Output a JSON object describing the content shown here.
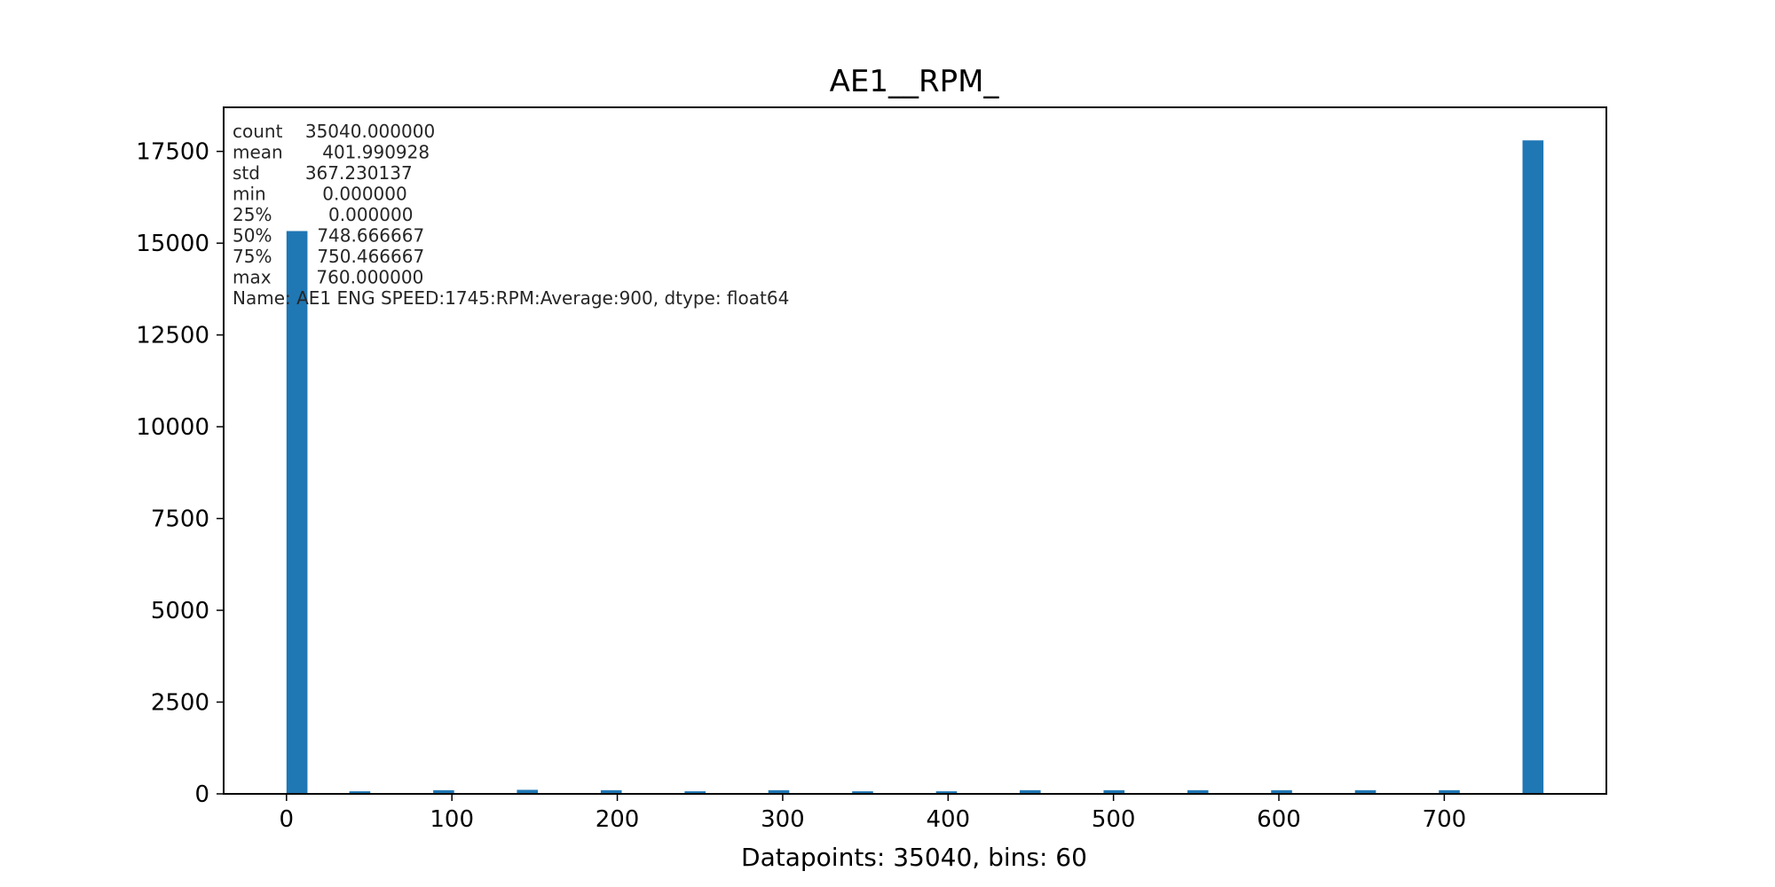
{
  "chart_data": {
    "type": "bar",
    "title": "AE1__RPM_",
    "xlabel": "Datapoints: 35040, bins: 60",
    "ylabel": "",
    "xlim": [
      -38,
      798
    ],
    "ylim": [
      0,
      18700
    ],
    "x_ticks": [
      0,
      100,
      200,
      300,
      400,
      500,
      600,
      700
    ],
    "y_ticks": [
      0,
      2500,
      5000,
      7500,
      10000,
      12500,
      15000,
      17500
    ],
    "bin_width": 12.667,
    "bars": [
      {
        "x0": 0.0,
        "count": 15330
      },
      {
        "x0": 38.0,
        "count": 70
      },
      {
        "x0": 88.7,
        "count": 100
      },
      {
        "x0": 139.3,
        "count": 110
      },
      {
        "x0": 190.0,
        "count": 100
      },
      {
        "x0": 240.7,
        "count": 70
      },
      {
        "x0": 291.3,
        "count": 100
      },
      {
        "x0": 342.0,
        "count": 70
      },
      {
        "x0": 392.7,
        "count": 70
      },
      {
        "x0": 443.3,
        "count": 100
      },
      {
        "x0": 494.0,
        "count": 100
      },
      {
        "x0": 544.7,
        "count": 100
      },
      {
        "x0": 595.3,
        "count": 100
      },
      {
        "x0": 646.0,
        "count": 100
      },
      {
        "x0": 696.7,
        "count": 100
      },
      {
        "x0": 747.3,
        "count": 17800
      }
    ],
    "bar_color": "#1f77b4",
    "annotation_lines": [
      "count    35040.000000",
      "mean       401.990928",
      "std        367.230137",
      "min          0.000000",
      "25%          0.000000",
      "50%        748.666667",
      "75%        750.466667",
      "max        760.000000",
      "Name: AE1 ENG SPEED:1745:RPM:Average:900, dtype: float64"
    ]
  }
}
